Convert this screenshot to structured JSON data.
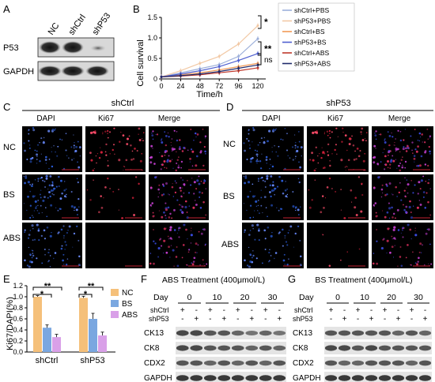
{
  "panels": {
    "A": "A",
    "B": "B",
    "C": "C",
    "D": "D",
    "E": "E",
    "F": "F",
    "G": "G"
  },
  "panelA": {
    "lanes": [
      "NC",
      "shCtrl",
      "shP53"
    ],
    "rows": [
      "P53",
      "GAPDH"
    ]
  },
  "panelB": {
    "chart_data": {
      "type": "line",
      "xlabel": "Time/h",
      "ylabel": "Cell survival",
      "x": [
        0,
        24,
        48,
        72,
        96,
        120
      ],
      "xlim": [
        0,
        120
      ],
      "ylim": [
        0,
        1.5
      ],
      "yticks": [
        "0",
        "0.5",
        "1.0",
        "1.5"
      ],
      "series": [
        {
          "name": "shCtrl+PBS",
          "color": "#9db0da",
          "values": [
            0.05,
            0.15,
            0.25,
            0.35,
            0.55,
            0.98
          ]
        },
        {
          "name": "shP53+PBS",
          "color": "#f2c9a5",
          "values": [
            0.05,
            0.2,
            0.38,
            0.55,
            0.85,
            1.3
          ]
        },
        {
          "name": "shCtrl+BS",
          "color": "#f19a56",
          "values": [
            0.05,
            0.1,
            0.15,
            0.22,
            0.3,
            0.38
          ]
        },
        {
          "name": "shP53+BS",
          "color": "#4e5fd0",
          "values": [
            0.05,
            0.12,
            0.2,
            0.3,
            0.45,
            0.62
          ]
        },
        {
          "name": "shCtrl+ABS",
          "color": "#c0392b",
          "values": [
            0.05,
            0.07,
            0.1,
            0.15,
            0.2,
            0.27
          ]
        },
        {
          "name": "shP53+ABS",
          "color": "#1f2a6b",
          "values": [
            0.05,
            0.08,
            0.12,
            0.18,
            0.26,
            0.34
          ]
        }
      ],
      "significance": [
        "*",
        "**",
        "ns"
      ]
    }
  },
  "panelC": {
    "title": "shCtrl",
    "columns": [
      "DAPI",
      "Ki67",
      "Merge"
    ],
    "rows": [
      "NC",
      "BS",
      "ABS"
    ]
  },
  "panelD": {
    "title": "shP53",
    "columns": [
      "DAPI",
      "Ki67",
      "Merge"
    ],
    "rows": [
      "NC",
      "BS",
      "ABS"
    ]
  },
  "panelE": {
    "chart_data": {
      "type": "bar",
      "categories": [
        "shCtrl",
        "shP53"
      ],
      "ylabel": "Ki67/DAPI(%)",
      "ylim": [
        0,
        1.2
      ],
      "yticks": [
        "0.0",
        "0.2",
        "0.4",
        "0.6",
        "0.8",
        "1.0",
        "1.2"
      ],
      "series": [
        {
          "name": "NC",
          "color": "#f5c07a",
          "values": [
            1.0,
            0.98
          ]
        },
        {
          "name": "BS",
          "color": "#7aa7e0",
          "values": [
            0.44,
            0.6
          ]
        },
        {
          "name": "ABS",
          "color": "#d9a0e8",
          "values": [
            0.27,
            0.3
          ]
        }
      ],
      "errors": [
        [
          0.02,
          0.03
        ],
        [
          0.05,
          0.1
        ],
        [
          0.05,
          0.06
        ]
      ],
      "significance": [
        "*",
        "**",
        "*",
        "**"
      ]
    }
  },
  "panelF": {
    "title": "ABS Treatment (400μmol/L)",
    "day_label": "Day",
    "days": [
      "0",
      "10",
      "20",
      "30"
    ],
    "row_labels": [
      "shCtrl",
      "shP53"
    ],
    "pm": [
      "+",
      "-",
      "+",
      "-",
      "+",
      "-",
      "+",
      "-"
    ],
    "mp": [
      "-",
      "+",
      "-",
      "+",
      "-",
      "+",
      "-",
      "+"
    ],
    "blots": [
      "CK13",
      "CK8",
      "CDX2",
      "GAPDH"
    ]
  },
  "panelG": {
    "title": "BS Treatment (400μmol/L)",
    "day_label": "Day",
    "days": [
      "0",
      "10",
      "20",
      "30"
    ],
    "row_labels": [
      "shCtrl",
      "shP53"
    ],
    "pm": [
      "+",
      "-",
      "+",
      "-",
      "+",
      "-",
      "+",
      "-"
    ],
    "mp": [
      "-",
      "+",
      "-",
      "+",
      "-",
      "+",
      "-",
      "+"
    ],
    "blots": [
      "CK13",
      "CK8",
      "CDX2",
      "GAPDH"
    ]
  }
}
